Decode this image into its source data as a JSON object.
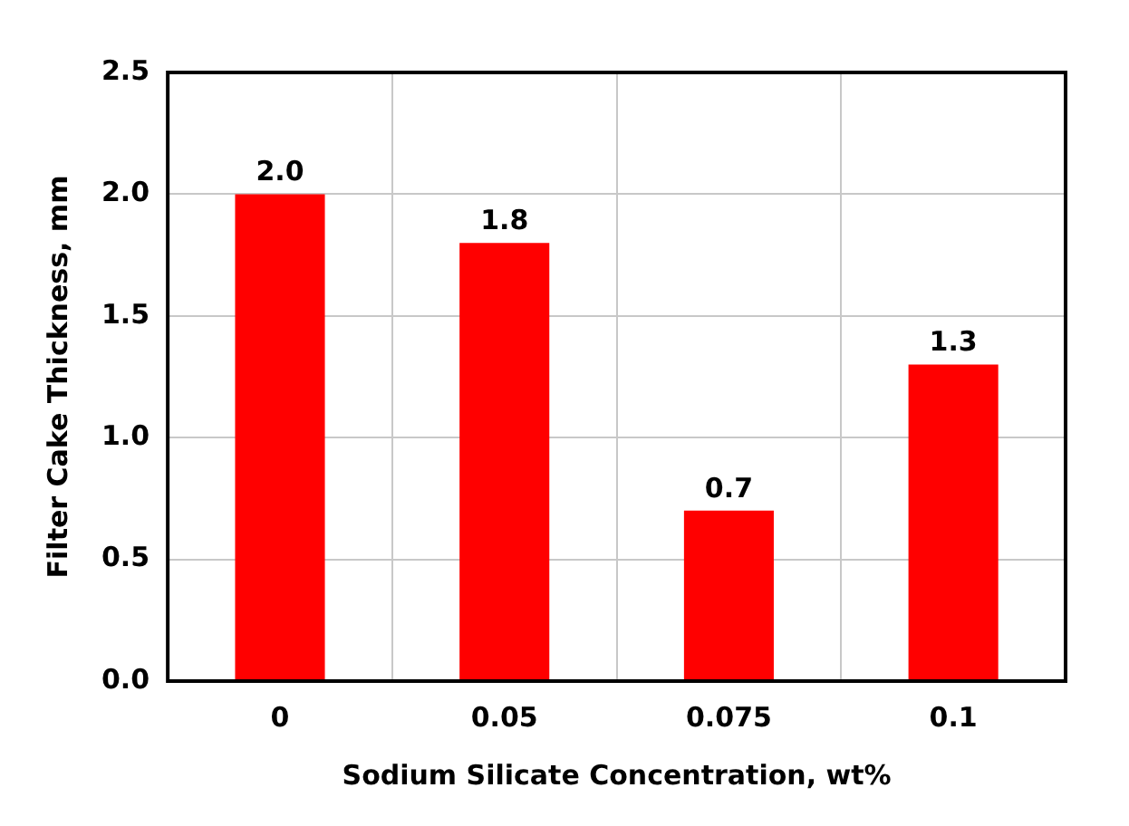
{
  "chart_data": {
    "type": "bar",
    "xlabel": "Sodium Silicate Concentration, wt%",
    "ylabel": "Filter Cake Thickness, mm",
    "categories": [
      "0",
      "0.05",
      "0.075",
      "0.1"
    ],
    "values": [
      2.0,
      1.8,
      0.7,
      1.3
    ],
    "color": "#ff0000",
    "value_labels": [
      "2.0",
      "1.8",
      "0.7",
      "1.3"
    ],
    "ylim": [
      0,
      2.5
    ],
    "yticks": [
      {
        "value": 0,
        "label": "0.0"
      },
      {
        "value": 0.5,
        "label": "0.5"
      },
      {
        "value": 1,
        "label": "1.0"
      },
      {
        "value": 1.5,
        "label": "1.5"
      },
      {
        "value": 2,
        "label": "2.0"
      },
      {
        "value": 2.5,
        "label": "2.5"
      }
    ],
    "grid": true
  }
}
